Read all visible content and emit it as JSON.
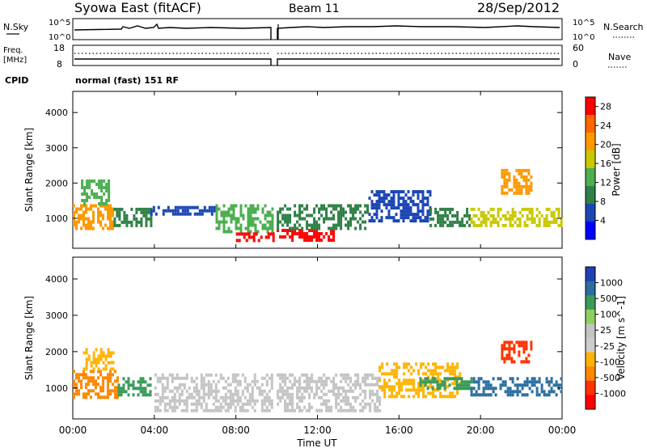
{
  "header": {
    "station": "Syowa East (fitACF)",
    "beam": "Beam 11",
    "date": "28/Sep/2012"
  },
  "top_panels": {
    "nsky_label": "N.Sky",
    "nsky_ticks": [
      "10^5",
      "10^0"
    ],
    "nsearch_label": "N.Search",
    "nsearch_ticks": [
      "10^5",
      "10^0"
    ],
    "freq_label_1": "Freq.",
    "freq_label_2": "[MHz]",
    "freq_ticks": [
      "18",
      "8"
    ],
    "nave_label": "Nave",
    "nave_ticks": [
      "60",
      "0"
    ],
    "cpid_label": "CPID",
    "cpid_text": "normal (fast) 151 RF"
  },
  "colors": {
    "power_scale": [
      "#0000ff",
      "#1c46b4",
      "#2f8046",
      "#4caf50",
      "#c8c800",
      "#ff9900",
      "#ff6600",
      "#ff0000"
    ],
    "velocity_scale": [
      "#1f3fb4",
      "#2c6e9e",
      "#3b9b5c",
      "#8bd15b",
      "#c4c4c4",
      "#cccccc",
      "#ffb300",
      "#ff8800",
      "#ff3300",
      "#ff0000"
    ],
    "data_black": "#000000"
  },
  "chart_data": [
    {
      "type": "heatmap",
      "title": "",
      "xlabel": "Time UT",
      "ylabel": "Slant Range [km]",
      "xlim": [
        "00:00",
        "24:00"
      ],
      "ylim": [
        150,
        4600
      ],
      "x_ticks": [
        "00:00",
        "04:00",
        "08:00",
        "12:00",
        "16:00",
        "20:00",
        "00:00"
      ],
      "y_ticks": [
        1000,
        2000,
        3000,
        4000
      ],
      "colorbar": {
        "label": "Power [dB]",
        "ticks": [
          4,
          8,
          12,
          16,
          20,
          24,
          28
        ],
        "range": [
          0,
          30
        ]
      },
      "regions": [
        {
          "t0": 0.0,
          "t1": 2.0,
          "r0": 700,
          "r1": 1400,
          "value": 22
        },
        {
          "t0": 0.4,
          "t1": 1.8,
          "r0": 1400,
          "r1": 2100,
          "value": 14
        },
        {
          "t0": 2.0,
          "t1": 3.8,
          "r0": 800,
          "r1": 1300,
          "value": 8
        },
        {
          "t0": 3.8,
          "t1": 7.0,
          "r0": 1100,
          "r1": 1350,
          "value": 4
        },
        {
          "t0": 7.0,
          "t1": 9.8,
          "r0": 600,
          "r1": 1400,
          "value": 12
        },
        {
          "t0": 8.0,
          "t1": 9.8,
          "r0": 400,
          "r1": 600,
          "value": 28
        },
        {
          "t0": 10.0,
          "t1": 12.8,
          "r0": 350,
          "r1": 700,
          "value": 29
        },
        {
          "t0": 10.0,
          "t1": 14.5,
          "r0": 700,
          "r1": 1400,
          "value": 10
        },
        {
          "t0": 14.5,
          "t1": 17.5,
          "r0": 900,
          "r1": 1800,
          "value": 6
        },
        {
          "t0": 17.5,
          "t1": 19.5,
          "r0": 800,
          "r1": 1300,
          "value": 8
        },
        {
          "t0": 19.5,
          "t1": 24.0,
          "r0": 800,
          "r1": 1300,
          "value": 18
        },
        {
          "t0": 21.0,
          "t1": 22.5,
          "r0": 1700,
          "r1": 2400,
          "value": 20
        }
      ]
    },
    {
      "type": "heatmap",
      "title": "",
      "xlabel": "Time UT",
      "ylabel": "Slant Range [km]",
      "xlim": [
        "00:00",
        "24:00"
      ],
      "ylim": [
        150,
        4600
      ],
      "x_ticks": [
        "00:00",
        "04:00",
        "08:00",
        "12:00",
        "16:00",
        "20:00",
        "00:00"
      ],
      "y_ticks": [
        1000,
        2000,
        3000,
        4000
      ],
      "colorbar": {
        "label": "Velocity [m s^-1]",
        "ticks": [
          1000,
          500,
          100,
          25,
          -25,
          -100,
          -500,
          -1000
        ]
      },
      "regions": [
        {
          "t0": 0.0,
          "t1": 2.2,
          "r0": 700,
          "r1": 1500,
          "value": -500
        },
        {
          "t0": 0.5,
          "t1": 2.0,
          "r0": 1500,
          "r1": 2100,
          "value": -100
        },
        {
          "t0": 2.2,
          "t1": 3.8,
          "r0": 800,
          "r1": 1300,
          "value": 100
        },
        {
          "t0": 4.0,
          "t1": 9.8,
          "r0": 400,
          "r1": 1400,
          "value": 0
        },
        {
          "t0": 10.0,
          "t1": 15.0,
          "r0": 350,
          "r1": 1400,
          "value": 0
        },
        {
          "t0": 15.0,
          "t1": 19.0,
          "r0": 800,
          "r1": 1700,
          "value": -100
        },
        {
          "t0": 17.0,
          "t1": 19.5,
          "r0": 1000,
          "r1": 1300,
          "value": 100
        },
        {
          "t0": 19.5,
          "t1": 24.0,
          "r0": 800,
          "r1": 1300,
          "value": 500
        },
        {
          "t0": 21.0,
          "t1": 22.5,
          "r0": 1700,
          "r1": 2300,
          "value": -1000
        }
      ]
    }
  ]
}
